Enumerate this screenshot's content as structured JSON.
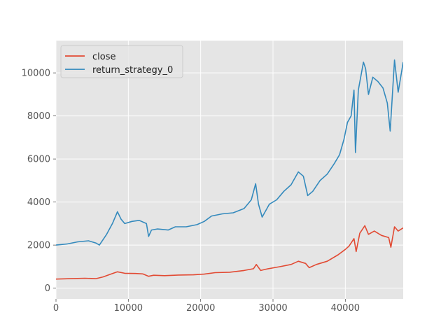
{
  "chart_data": {
    "type": "line",
    "style": "ggplot",
    "title": "",
    "xlabel": "",
    "ylabel": "",
    "xlim": [
      0,
      48000
    ],
    "ylim": [
      -500,
      11500
    ],
    "x_ticks": [
      0,
      10000,
      20000,
      30000,
      40000
    ],
    "y_ticks": [
      0,
      2000,
      4000,
      6000,
      8000,
      10000
    ],
    "grid": true,
    "legend_position": "upper-left",
    "series": [
      {
        "name": "close",
        "color": "#E24A33",
        "points": [
          [
            0,
            420
          ],
          [
            2000,
            440
          ],
          [
            4000,
            460
          ],
          [
            5500,
            440
          ],
          [
            6500,
            520
          ],
          [
            7500,
            640
          ],
          [
            8500,
            760
          ],
          [
            9500,
            690
          ],
          [
            11000,
            680
          ],
          [
            12000,
            660
          ],
          [
            12800,
            550
          ],
          [
            13500,
            600
          ],
          [
            15000,
            580
          ],
          [
            17000,
            610
          ],
          [
            19000,
            620
          ],
          [
            20500,
            650
          ],
          [
            22000,
            720
          ],
          [
            24000,
            740
          ],
          [
            26000,
            820
          ],
          [
            27300,
            900
          ],
          [
            27700,
            1100
          ],
          [
            28300,
            820
          ],
          [
            29000,
            880
          ],
          [
            31000,
            1000
          ],
          [
            32500,
            1100
          ],
          [
            33500,
            1250
          ],
          [
            34500,
            1150
          ],
          [
            35000,
            950
          ],
          [
            36000,
            1100
          ],
          [
            37500,
            1250
          ],
          [
            39000,
            1550
          ],
          [
            40000,
            1800
          ],
          [
            40500,
            1950
          ],
          [
            41200,
            2300
          ],
          [
            41500,
            1700
          ],
          [
            42000,
            2550
          ],
          [
            42700,
            2900
          ],
          [
            43200,
            2500
          ],
          [
            44000,
            2650
          ],
          [
            45000,
            2450
          ],
          [
            46000,
            2350
          ],
          [
            46300,
            1900
          ],
          [
            46800,
            2850
          ],
          [
            47300,
            2650
          ],
          [
            48000,
            2800
          ]
        ]
      },
      {
        "name": "return_strategy_0",
        "color": "#348ABD",
        "points": [
          [
            0,
            2000
          ],
          [
            1500,
            2050
          ],
          [
            3000,
            2150
          ],
          [
            4500,
            2200
          ],
          [
            5500,
            2100
          ],
          [
            6000,
            2000
          ],
          [
            7000,
            2500
          ],
          [
            7800,
            3000
          ],
          [
            8500,
            3550
          ],
          [
            9000,
            3200
          ],
          [
            9500,
            3000
          ],
          [
            10500,
            3100
          ],
          [
            11500,
            3150
          ],
          [
            12500,
            3000
          ],
          [
            12800,
            2400
          ],
          [
            13200,
            2700
          ],
          [
            14000,
            2750
          ],
          [
            15500,
            2700
          ],
          [
            16500,
            2850
          ],
          [
            18000,
            2850
          ],
          [
            19500,
            2950
          ],
          [
            20500,
            3100
          ],
          [
            21500,
            3350
          ],
          [
            23000,
            3450
          ],
          [
            24500,
            3500
          ],
          [
            26000,
            3700
          ],
          [
            27000,
            4100
          ],
          [
            27600,
            4850
          ],
          [
            28000,
            3900
          ],
          [
            28500,
            3300
          ],
          [
            29500,
            3900
          ],
          [
            30500,
            4100
          ],
          [
            31500,
            4500
          ],
          [
            32500,
            4800
          ],
          [
            33500,
            5400
          ],
          [
            34200,
            5200
          ],
          [
            34800,
            4300
          ],
          [
            35500,
            4500
          ],
          [
            36500,
            5000
          ],
          [
            37500,
            5300
          ],
          [
            38500,
            5800
          ],
          [
            39200,
            6200
          ],
          [
            39800,
            6900
          ],
          [
            40300,
            7700
          ],
          [
            40800,
            8000
          ],
          [
            41200,
            9200
          ],
          [
            41400,
            6300
          ],
          [
            41800,
            9200
          ],
          [
            42500,
            10500
          ],
          [
            42800,
            10200
          ],
          [
            43200,
            9000
          ],
          [
            43800,
            9800
          ],
          [
            44500,
            9600
          ],
          [
            45200,
            9300
          ],
          [
            45800,
            8600
          ],
          [
            46200,
            7300
          ],
          [
            46800,
            10600
          ],
          [
            47300,
            9100
          ],
          [
            48000,
            10500
          ]
        ]
      }
    ]
  }
}
